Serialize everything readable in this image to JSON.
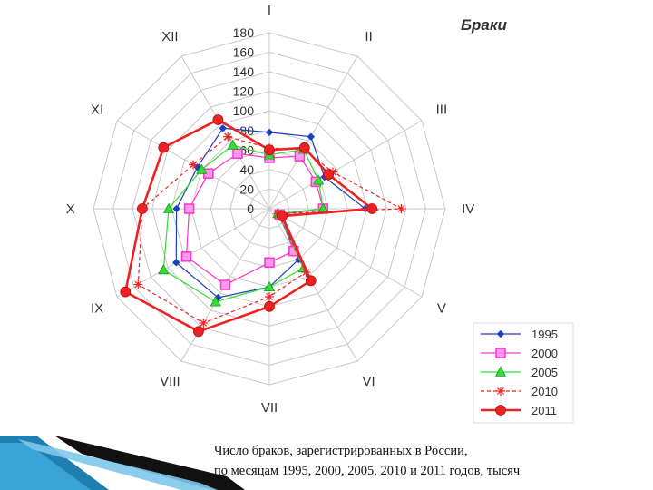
{
  "chart_data": {
    "type": "radar",
    "title": "Браки",
    "categories": [
      "I",
      "II",
      "III",
      "IV",
      "V",
      "VI",
      "VII",
      "VIII",
      "IX",
      "X",
      "XI",
      "XII"
    ],
    "rlim": [
      0,
      180
    ],
    "rticks": [
      "0",
      "20",
      "40",
      "60",
      "80",
      "100",
      "120",
      "140",
      "160",
      "180"
    ],
    "grid": true,
    "legend_position": "bottom-right",
    "series": [
      {
        "name": "1995",
        "color": "#1f3fbf",
        "marker": "diamond",
        "dash": false,
        "values": [
          78,
          85,
          65,
          98,
          14,
          60,
          80,
          105,
          110,
          95,
          85,
          95
        ]
      },
      {
        "name": "2000",
        "color": "#ff33cc",
        "marker": "square",
        "dash": false,
        "values": [
          52,
          62,
          55,
          55,
          12,
          50,
          55,
          90,
          98,
          82,
          72,
          65
        ]
      },
      {
        "name": "2005",
        "color": "#33dd33",
        "marker": "triangle",
        "dash": false,
        "values": [
          55,
          70,
          58,
          55,
          10,
          70,
          80,
          110,
          125,
          103,
          80,
          75
        ]
      },
      {
        "name": "2010",
        "color": "#ee2222",
        "marker": "star",
        "dash": true,
        "values": [
          62,
          70,
          75,
          135,
          10,
          75,
          90,
          135,
          155,
          130,
          90,
          85
        ]
      },
      {
        "name": "2011",
        "color": "#ee2222",
        "marker": "circle",
        "dash": false,
        "values": [
          60,
          72,
          70,
          105,
          15,
          85,
          100,
          145,
          170,
          130,
          125,
          105
        ]
      }
    ]
  },
  "caption": {
    "line1": "Число браков, зарегистрированных в России,",
    "line2": "по месяцам 1995, 2000, 2005, 2010 и 2011 годов, тысяч"
  }
}
